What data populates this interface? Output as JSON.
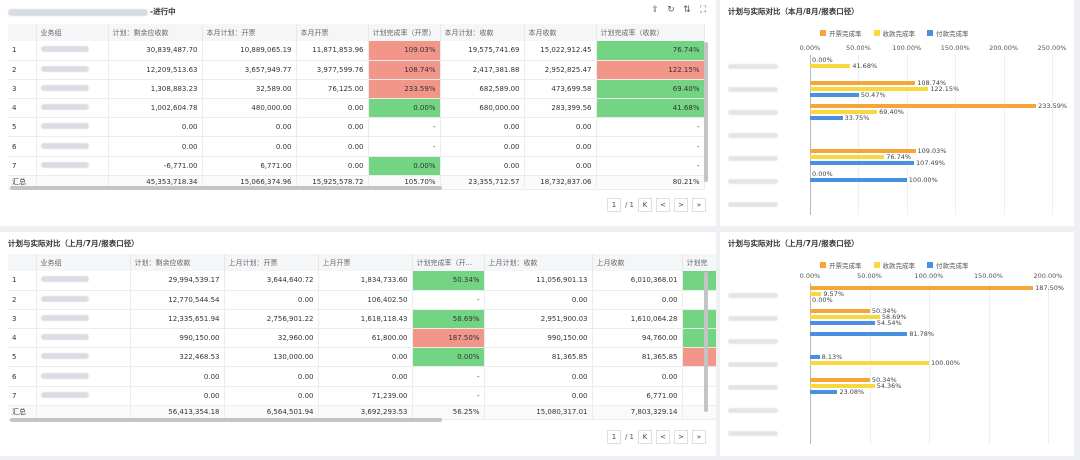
{
  "colors": {
    "orange": "#f5a53a",
    "yellow": "#f7d83f",
    "blue": "#4a90e2",
    "green": "#73d483",
    "red": "#f3968a"
  },
  "panel1": {
    "title_suffix": "-进行中",
    "columns": [
      "",
      "业务组",
      "计划：剩余应收款",
      "本月计划：开票",
      "本月开票",
      "计划完成率（开票）",
      "本月计划：收款",
      "本月收款",
      "计划完成率（收款）"
    ],
    "rows": [
      {
        "idx": "1",
        "a": "30,839,487.70",
        "b": "10,889,065.19",
        "c": "11,871,853.96",
        "r1": "109.03%",
        "r1c": "red",
        "d": "19,575,741.69",
        "e": "15,022,912.45",
        "r2": "76.74%",
        "r2c": "green"
      },
      {
        "idx": "2",
        "a": "12,209,513.63",
        "b": "3,657,949.77",
        "c": "3,977,599.76",
        "r1": "108.74%",
        "r1c": "red",
        "d": "2,417,381.88",
        "e": "2,952,825.47",
        "r2": "122.15%",
        "r2c": "red"
      },
      {
        "idx": "3",
        "a": "1,308,883.23",
        "b": "32,589.00",
        "c": "76,125.00",
        "r1": "233.59%",
        "r1c": "red",
        "d": "682,589.00",
        "e": "473,699.58",
        "r2": "69.40%",
        "r2c": "green"
      },
      {
        "idx": "4",
        "a": "1,002,604.78",
        "b": "480,000.00",
        "c": "0.00",
        "r1": "0.00%",
        "r1c": "green",
        "d": "680,000.00",
        "e": "283,399.56",
        "r2": "41.68%",
        "r2c": "green"
      },
      {
        "idx": "5",
        "a": "0.00",
        "b": "0.00",
        "c": "0.00",
        "r1": "-",
        "r1c": "",
        "d": "0.00",
        "e": "0.00",
        "r2": "-",
        "r2c": ""
      },
      {
        "idx": "6",
        "a": "0.00",
        "b": "0.00",
        "c": "0.00",
        "r1": "-",
        "r1c": "",
        "d": "0.00",
        "e": "0.00",
        "r2": "-",
        "r2c": ""
      },
      {
        "idx": "7",
        "a": "-6,771.00",
        "b": "6,771.00",
        "c": "0.00",
        "r1": "0.00%",
        "r1c": "green",
        "d": "0.00",
        "e": "0.00",
        "r2": "-",
        "r2c": ""
      }
    ],
    "total": {
      "label": "汇总",
      "a": "45,353,718.34",
      "b": "15,066,374.96",
      "c": "15,925,578.72",
      "r1": "105.70%",
      "d": "23,355,712.57",
      "e": "18,732,837.06",
      "r2": "80.21%"
    },
    "pager": {
      "current": "1",
      "sep": "/",
      "total": "1",
      "first": "K",
      "prev": "<",
      "next": ">",
      "last": "»"
    }
  },
  "panel2": {
    "title": "计划与实际对比（上月/7月/报表口径）",
    "columns": [
      "",
      "业务组",
      "计划：剩余应收款",
      "上月计划：开票",
      "上月开票",
      "计划完成率（开...",
      "上月计划：收款",
      "上月收款",
      "计划完"
    ],
    "rows": [
      {
        "idx": "1",
        "a": "29,994,539.17",
        "b": "3,644,640.72",
        "c": "1,834,733.60",
        "r1": "50.34%",
        "r1c": "green",
        "d": "11,056,901.13",
        "e": "6,010,368.01",
        "r2c": "green"
      },
      {
        "idx": "2",
        "a": "12,770,544.54",
        "b": "0.00",
        "c": "106,402.50",
        "r1": "-",
        "r1c": "",
        "d": "0.00",
        "e": "0.00",
        "r2c": ""
      },
      {
        "idx": "3",
        "a": "12,335,651.94",
        "b": "2,756,901.22",
        "c": "1,618,118.43",
        "r1": "58.69%",
        "r1c": "green",
        "d": "2,951,900.03",
        "e": "1,610,064.28",
        "r2c": "green"
      },
      {
        "idx": "4",
        "a": "990,150.00",
        "b": "32,960.00",
        "c": "61,800.00",
        "r1": "187.50%",
        "r1c": "red",
        "d": "990,150.00",
        "e": "94,760.00",
        "r2c": "green"
      },
      {
        "idx": "5",
        "a": "322,468.53",
        "b": "130,000.00",
        "c": "0.00",
        "r1": "0.00%",
        "r1c": "green",
        "d": "81,365.85",
        "e": "81,365.85",
        "r2c": "red"
      },
      {
        "idx": "6",
        "a": "0.00",
        "b": "0.00",
        "c": "0.00",
        "r1": "-",
        "r1c": "",
        "d": "0.00",
        "e": "0.00",
        "r2c": ""
      },
      {
        "idx": "7",
        "a": "0.00",
        "b": "0.00",
        "c": "71,239.00",
        "r1": "-",
        "r1c": "",
        "d": "0.00",
        "e": "6,771.00",
        "r2c": ""
      }
    ],
    "total": {
      "label": "汇总",
      "a": "56,413,354.18",
      "b": "6,564,501.94",
      "c": "3,692,293.53",
      "r1": "56.25%",
      "d": "15,080,317.01",
      "e": "7,803,329.14"
    },
    "pager": {
      "current": "1",
      "sep": "/",
      "total": "1",
      "first": "K",
      "prev": "<",
      "next": ">",
      "last": "»"
    }
  },
  "chart_data": [
    {
      "type": "bar",
      "orientation": "horizontal",
      "title": "计划与实际对比（本月/8月/报表口径）",
      "legend": [
        "开票完成率",
        "收款完成率",
        "付款完成率"
      ],
      "xticks": [
        "0.00%",
        "50.00%",
        "100.00%",
        "150.00%",
        "200.00%",
        "250.00%"
      ],
      "xlim": [
        0,
        250
      ],
      "groups": [
        {
          "bars": [
            {
              "s": 1,
              "v": 0,
              "label": "0.00%"
            },
            {
              "s": 1,
              "v": 41.68,
              "label": "41.68%"
            }
          ]
        },
        {
          "bars": [
            {
              "s": 0,
              "v": 108.74,
              "label": "108.74%"
            },
            {
              "s": 1,
              "v": 122.15,
              "label": "122.15%"
            },
            {
              "s": 2,
              "v": 50.47,
              "label": "50.47%"
            }
          ]
        },
        {
          "bars": [
            {
              "s": 0,
              "v": 233.59,
              "label": "233.59%"
            },
            {
              "s": 1,
              "v": 69.4,
              "label": "69.40%"
            },
            {
              "s": 2,
              "v": 33.75,
              "label": "33.75%"
            }
          ]
        },
        {
          "bars": []
        },
        {
          "bars": [
            {
              "s": 0,
              "v": 109.03,
              "label": "109.03%"
            },
            {
              "s": 1,
              "v": 76.74,
              "label": "76.74%"
            },
            {
              "s": 2,
              "v": 107.49,
              "label": "107.49%"
            }
          ]
        },
        {
          "bars": [
            {
              "s": 2,
              "v": 0,
              "label": "0.00%"
            },
            {
              "s": 2,
              "v": 100,
              "label": "100.00%"
            }
          ]
        },
        {
          "bars": []
        }
      ]
    },
    {
      "type": "bar",
      "orientation": "horizontal",
      "title": "计划与实际对比（上月/7月/报表口径）",
      "legend": [
        "开票完成率",
        "收款完成率",
        "付款完成率"
      ],
      "xticks": [
        "0.00%",
        "50.00%",
        "100.00%",
        "150.00%",
        "200.00%"
      ],
      "xlim": [
        0,
        200
      ],
      "groups": [
        {
          "bars": [
            {
              "s": 0,
              "v": 187.5,
              "label": "187.50%"
            },
            {
              "s": 1,
              "v": 9.57,
              "label": "9.57%"
            },
            {
              "s": 2,
              "v": 0,
              "label": "0.00%"
            }
          ]
        },
        {
          "bars": [
            {
              "s": 0,
              "v": 50.34,
              "label": "50.34%"
            },
            {
              "s": 1,
              "v": 58.69,
              "label": "58.69%"
            },
            {
              "s": 2,
              "v": 54.54,
              "label": "54.54%"
            }
          ]
        },
        {
          "bars": [
            {
              "s": 2,
              "v": 81.78,
              "label": "81.78%"
            }
          ]
        },
        {
          "bars": [
            {
              "s": 2,
              "v": 8.13,
              "label": "8.13%"
            },
            {
              "s": 1,
              "v": 100,
              "label": "100.00%"
            }
          ]
        },
        {
          "bars": [
            {
              "s": 0,
              "v": 50.34,
              "label": "50.34%"
            },
            {
              "s": 1,
              "v": 54.36,
              "label": "54.36%"
            },
            {
              "s": 2,
              "v": 23.08,
              "label": "23.08%"
            }
          ]
        },
        {
          "bars": []
        },
        {
          "bars": []
        }
      ]
    }
  ]
}
